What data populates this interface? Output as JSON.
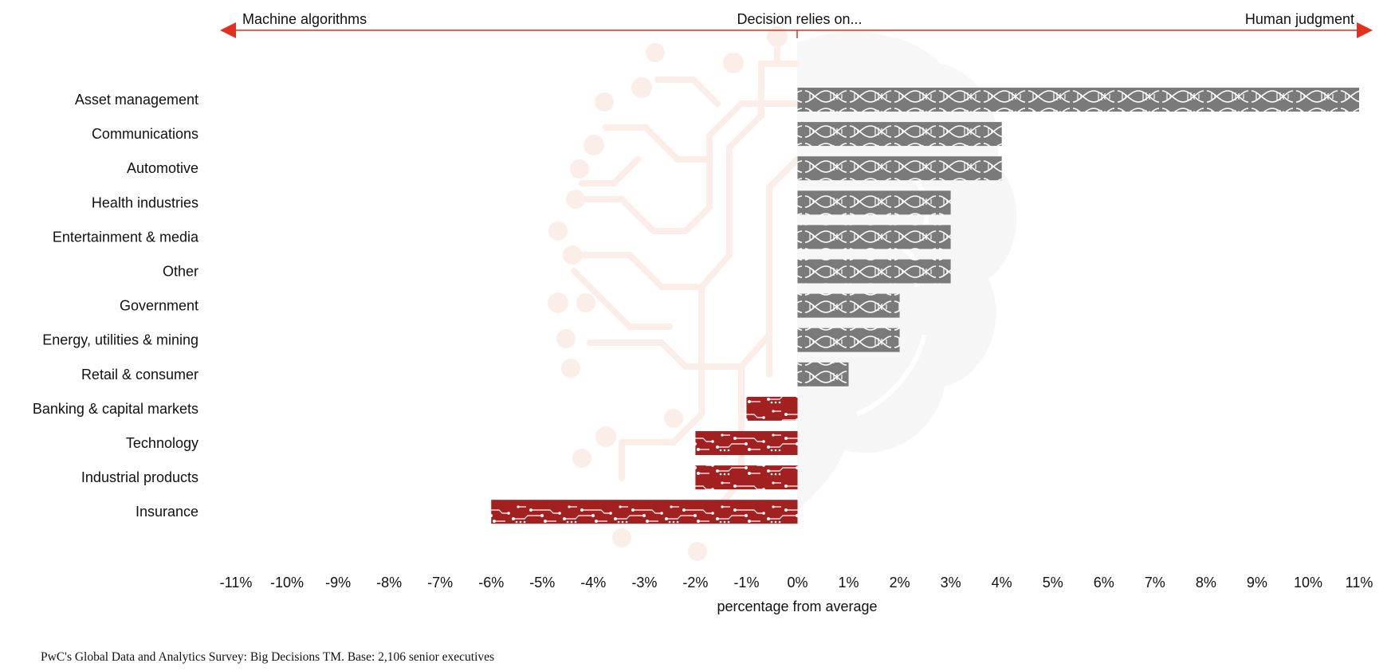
{
  "chart_data": {
    "type": "bar",
    "orientation": "horizontal",
    "header": {
      "left_label": "Machine algorithms",
      "center_label": "Decision relies on...",
      "right_label": "Human judgment"
    },
    "categories": [
      "Asset management",
      "Communications",
      "Automotive",
      "Health industries",
      "Entertainment & media",
      "Other",
      "Government",
      "Energy, utilities & mining",
      "Retail & consumer",
      "Banking & capital markets",
      "Technology",
      "Industrial products",
      "Insurance"
    ],
    "values": [
      11,
      4,
      4,
      3,
      3,
      3,
      2,
      2,
      1,
      -1,
      -2,
      -2,
      -6
    ],
    "xlabel": "percentage from average",
    "ylabel": "",
    "xlim": [
      -11,
      11
    ],
    "xticks": [
      "-11%",
      "-10%",
      "-9%",
      "-8%",
      "-7%",
      "-6%",
      "-5%",
      "-4%",
      "-3%",
      "-2%",
      "-1%",
      "0%",
      "1%",
      "2%",
      "3%",
      "4%",
      "5%",
      "6%",
      "7%",
      "8%",
      "9%",
      "10%",
      "11%"
    ],
    "grid": false,
    "colors": {
      "positive": "#7a7a7a",
      "negative": "#a32020",
      "arrow": "#e0301e",
      "watermark": "#fbeee9",
      "watermark_brain": "#f6f6f6"
    }
  },
  "footer": {
    "source": "PwC's Global Data and Analytics Survey: Big Decisions TM. Base: 2,106 senior executives"
  }
}
